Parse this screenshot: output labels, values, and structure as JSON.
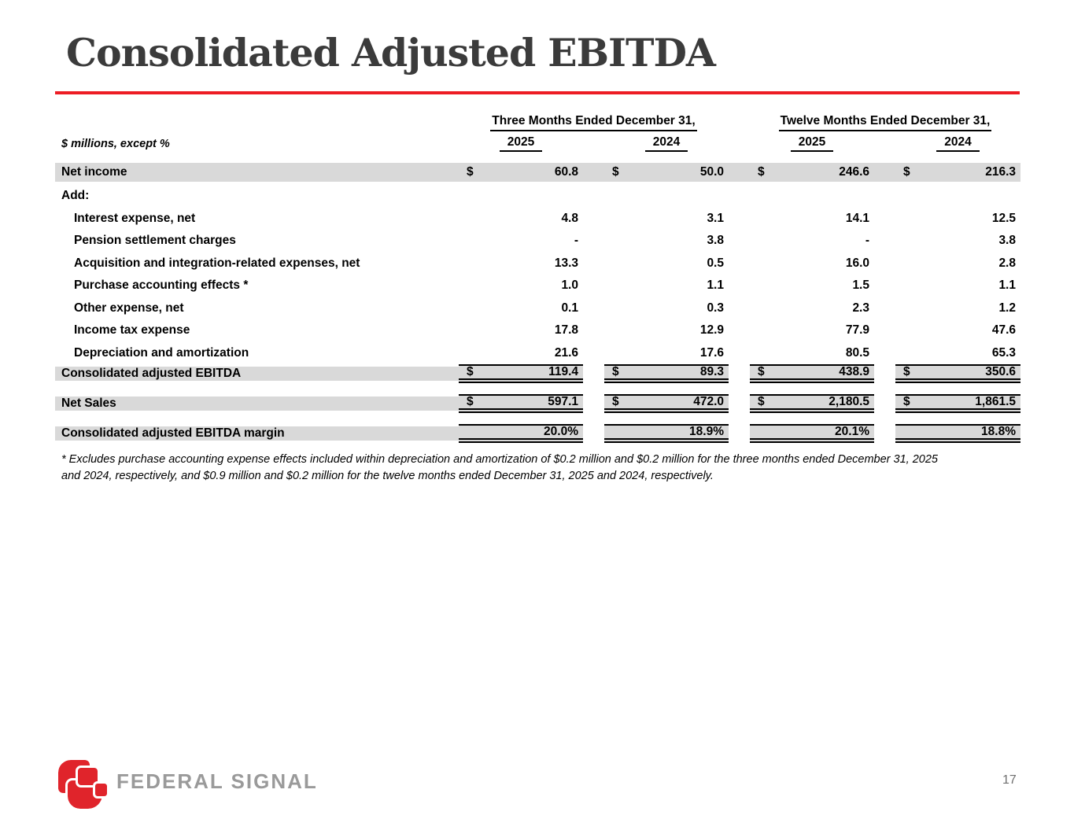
{
  "slide": {
    "title": "Consolidated Adjusted EBITDA",
    "accent_color": "#ED1C24",
    "row_highlight_color": "#D9D9D9"
  },
  "table": {
    "unit_label": "$ millions, except %",
    "col_groups": [
      {
        "label": "Three Months Ended December 31,",
        "years": [
          "2025",
          "2024"
        ]
      },
      {
        "label": "Twelve Months Ended December 31,",
        "years": [
          "2025",
          "2024"
        ]
      }
    ],
    "rows": [
      {
        "label": "Net income",
        "style": "gray",
        "dollar": true,
        "values": [
          "60.8",
          "50.0",
          "246.6",
          "216.3"
        ]
      },
      {
        "label": "Add:",
        "style": "section",
        "dollar": false,
        "values": []
      },
      {
        "label": "Interest expense, net",
        "style": "indent",
        "dollar": false,
        "values": [
          "4.8",
          "3.1",
          "14.1",
          "12.5"
        ]
      },
      {
        "label": "Pension settlement charges",
        "style": "indent",
        "dollar": false,
        "values": [
          "-",
          "3.8",
          "-",
          "3.8"
        ]
      },
      {
        "label": "Acquisition and integration-related expenses, net",
        "style": "indent",
        "dollar": false,
        "values": [
          "13.3",
          "0.5",
          "16.0",
          "2.8"
        ]
      },
      {
        "label": "Purchase accounting effects *",
        "style": "indent",
        "dollar": false,
        "values": [
          "1.0",
          "1.1",
          "1.5",
          "1.1"
        ]
      },
      {
        "label": "Other expense, net",
        "style": "indent",
        "dollar": false,
        "values": [
          "0.1",
          "0.3",
          "2.3",
          "1.2"
        ]
      },
      {
        "label": "Income tax expense",
        "style": "indent",
        "dollar": false,
        "values": [
          "17.8",
          "12.9",
          "77.9",
          "47.6"
        ]
      },
      {
        "label": "Depreciation and amortization",
        "style": "indent",
        "dollar": false,
        "values": [
          "21.6",
          "17.6",
          "80.5",
          "65.3"
        ]
      },
      {
        "label": "Consolidated adjusted EBITDA",
        "style": "summary",
        "dollar": true,
        "values": [
          "119.4",
          "89.3",
          "438.9",
          "350.6"
        ]
      },
      {
        "label": "Net Sales",
        "style": "summary",
        "dollar": true,
        "values": [
          "597.1",
          "472.0",
          "2,180.5",
          "1,861.5"
        ]
      },
      {
        "label": "Consolidated adjusted EBITDA margin",
        "style": "summary",
        "dollar": false,
        "values": [
          "20.0%",
          "18.9%",
          "20.1%",
          "18.8%"
        ]
      }
    ]
  },
  "footnote": "* Excludes purchase accounting expense effects included within depreciation and amortization of $0.2 million and $0.2 million for the three months ended December 31, 2025 and 2024, respectively, and $0.9 million and $0.2 million for the twelve months ended December 31, 2025 and 2024, respectively.",
  "footer": {
    "logo_text": "FEDERAL SIGNAL",
    "logo_red": "#E0242B",
    "logo_text_color": "#9A9A9A",
    "page_number": "17"
  }
}
